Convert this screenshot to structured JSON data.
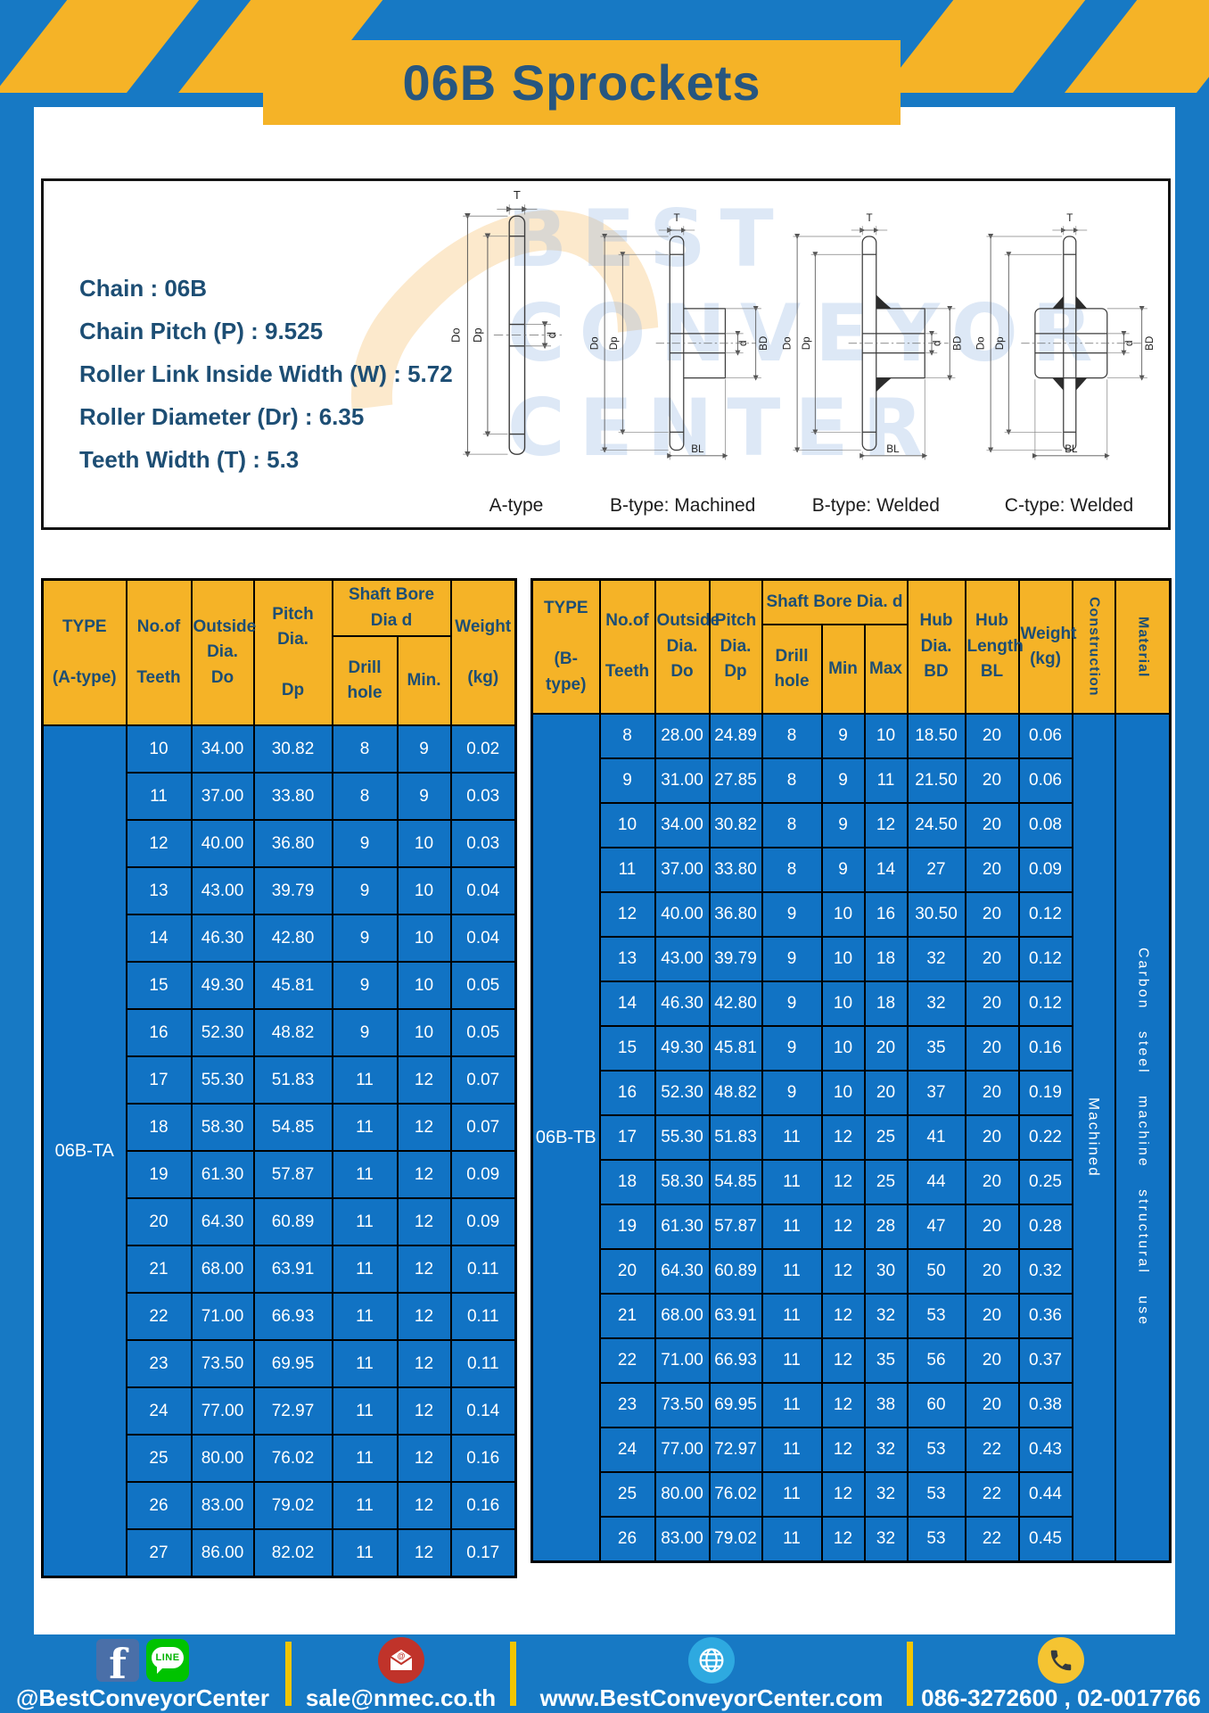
{
  "header": {
    "title": "06B Sprockets"
  },
  "specs": {
    "lines": [
      "Chain  : 06B",
      "Chain Pitch (P)  :  9.525",
      "Roller Link Inside Width (W)  :  5.72",
      "Roller Diameter (Dr)  : 6.35",
      "Teeth Width (T)  :  5.3"
    ]
  },
  "watermark": {
    "text": "BEST\nCONVEYOR\nCENTER"
  },
  "diagrams": {
    "labels": [
      "A-type",
      "B-type: Machined",
      "B-type: Welded",
      "C-type: Welded"
    ],
    "dims": {
      "T": "T",
      "Do": "Do",
      "Dp": "Dp",
      "d": "d",
      "BD": "BD",
      "BL": "BL"
    }
  },
  "table_a": {
    "headers": {
      "type": "TYPE\n\n(A-type)",
      "teeth": "No.of\n\nTeeth",
      "outside": "Outside\nDia.\nDo",
      "pitch": "Pitch Dia.\n\nDp",
      "shaft_bore": "Shaft Bore Dia d",
      "drill": "Drill hole",
      "min": "Min.",
      "weight": "Weight\n\n(kg)"
    },
    "type_label": "06B-TA",
    "rows": [
      [
        "10",
        "34.00",
        "30.82",
        "8",
        "9",
        "0.02"
      ],
      [
        "11",
        "37.00",
        "33.80",
        "8",
        "9",
        "0.03"
      ],
      [
        "12",
        "40.00",
        "36.80",
        "9",
        "10",
        "0.03"
      ],
      [
        "13",
        "43.00",
        "39.79",
        "9",
        "10",
        "0.04"
      ],
      [
        "14",
        "46.30",
        "42.80",
        "9",
        "10",
        "0.04"
      ],
      [
        "15",
        "49.30",
        "45.81",
        "9",
        "10",
        "0.05"
      ],
      [
        "16",
        "52.30",
        "48.82",
        "9",
        "10",
        "0.05"
      ],
      [
        "17",
        "55.30",
        "51.83",
        "11",
        "12",
        "0.07"
      ],
      [
        "18",
        "58.30",
        "54.85",
        "11",
        "12",
        "0.07"
      ],
      [
        "19",
        "61.30",
        "57.87",
        "11",
        "12",
        "0.09"
      ],
      [
        "20",
        "64.30",
        "60.89",
        "11",
        "12",
        "0.09"
      ],
      [
        "21",
        "68.00",
        "63.91",
        "11",
        "12",
        "0.11"
      ],
      [
        "22",
        "71.00",
        "66.93",
        "11",
        "12",
        "0.11"
      ],
      [
        "23",
        "73.50",
        "69.95",
        "11",
        "12",
        "0.11"
      ],
      [
        "24",
        "77.00",
        "72.97",
        "11",
        "12",
        "0.14"
      ],
      [
        "25",
        "80.00",
        "76.02",
        "11",
        "12",
        "0.16"
      ],
      [
        "26",
        "83.00",
        "79.02",
        "11",
        "12",
        "0.16"
      ],
      [
        "27",
        "86.00",
        "82.02",
        "11",
        "12",
        "0.17"
      ]
    ]
  },
  "table_b": {
    "headers": {
      "type": "TYPE\n\n(B-type)",
      "teeth": "No.of\n\nTeeth",
      "outside": "Outside\nDia.\nDo",
      "pitch": "Pitch\nDia.\nDp",
      "shaft_bore": "Shaft Bore Dia. d",
      "drill": "Drill hole",
      "min": "Min",
      "max": "Max",
      "hub_dia": "Hub\nDia.\nBD",
      "hub_length": "Hub\nLength\nBL",
      "weight": "Weight\n(kg)",
      "construction": "Construction",
      "material": "Material"
    },
    "type_label": "06B-TB",
    "construction_label": "Machined",
    "material_label": "Carbon steel machine structural use",
    "rows": [
      [
        "8",
        "28.00",
        "24.89",
        "8",
        "9",
        "10",
        "18.50",
        "20",
        "0.06"
      ],
      [
        "9",
        "31.00",
        "27.85",
        "8",
        "9",
        "11",
        "21.50",
        "20",
        "0.06"
      ],
      [
        "10",
        "34.00",
        "30.82",
        "8",
        "9",
        "12",
        "24.50",
        "20",
        "0.08"
      ],
      [
        "11",
        "37.00",
        "33.80",
        "8",
        "9",
        "14",
        "27",
        "20",
        "0.09"
      ],
      [
        "12",
        "40.00",
        "36.80",
        "9",
        "10",
        "16",
        "30.50",
        "20",
        "0.12"
      ],
      [
        "13",
        "43.00",
        "39.79",
        "9",
        "10",
        "18",
        "32",
        "20",
        "0.12"
      ],
      [
        "14",
        "46.30",
        "42.80",
        "9",
        "10",
        "18",
        "32",
        "20",
        "0.12"
      ],
      [
        "15",
        "49.30",
        "45.81",
        "9",
        "10",
        "20",
        "35",
        "20",
        "0.16"
      ],
      [
        "16",
        "52.30",
        "48.82",
        "9",
        "10",
        "20",
        "37",
        "20",
        "0.19"
      ],
      [
        "17",
        "55.30",
        "51.83",
        "11",
        "12",
        "25",
        "41",
        "20",
        "0.22"
      ],
      [
        "18",
        "58.30",
        "54.85",
        "11",
        "12",
        "25",
        "44",
        "20",
        "0.25"
      ],
      [
        "19",
        "61.30",
        "57.87",
        "11",
        "12",
        "28",
        "47",
        "20",
        "0.28"
      ],
      [
        "20",
        "64.30",
        "60.89",
        "11",
        "12",
        "30",
        "50",
        "20",
        "0.32"
      ],
      [
        "21",
        "68.00",
        "63.91",
        "11",
        "12",
        "32",
        "53",
        "20",
        "0.36"
      ],
      [
        "22",
        "71.00",
        "66.93",
        "11",
        "12",
        "35",
        "56",
        "20",
        "0.37"
      ],
      [
        "23",
        "73.50",
        "69.95",
        "11",
        "12",
        "38",
        "60",
        "20",
        "0.38"
      ],
      [
        "24",
        "77.00",
        "72.97",
        "11",
        "12",
        "32",
        "53",
        "22",
        "0.43"
      ],
      [
        "25",
        "80.00",
        "76.02",
        "11",
        "12",
        "32",
        "53",
        "22",
        "0.44"
      ],
      [
        "26",
        "83.00",
        "79.02",
        "11",
        "12",
        "32",
        "53",
        "22",
        "0.45"
      ]
    ]
  },
  "footer": {
    "line_badge": "LINE",
    "items": [
      {
        "icons": [
          "facebook-icon",
          "line-icon"
        ],
        "text": "@BestConveyorCenter"
      },
      {
        "icons": [
          "mail-icon"
        ],
        "text": "sale@nmec.co.th"
      },
      {
        "icons": [
          "globe-icon"
        ],
        "text": "www.BestConveyorCenter.com"
      },
      {
        "icons": [
          "phone-icon"
        ],
        "text": "086-3272600 , 02-0017766"
      }
    ]
  }
}
